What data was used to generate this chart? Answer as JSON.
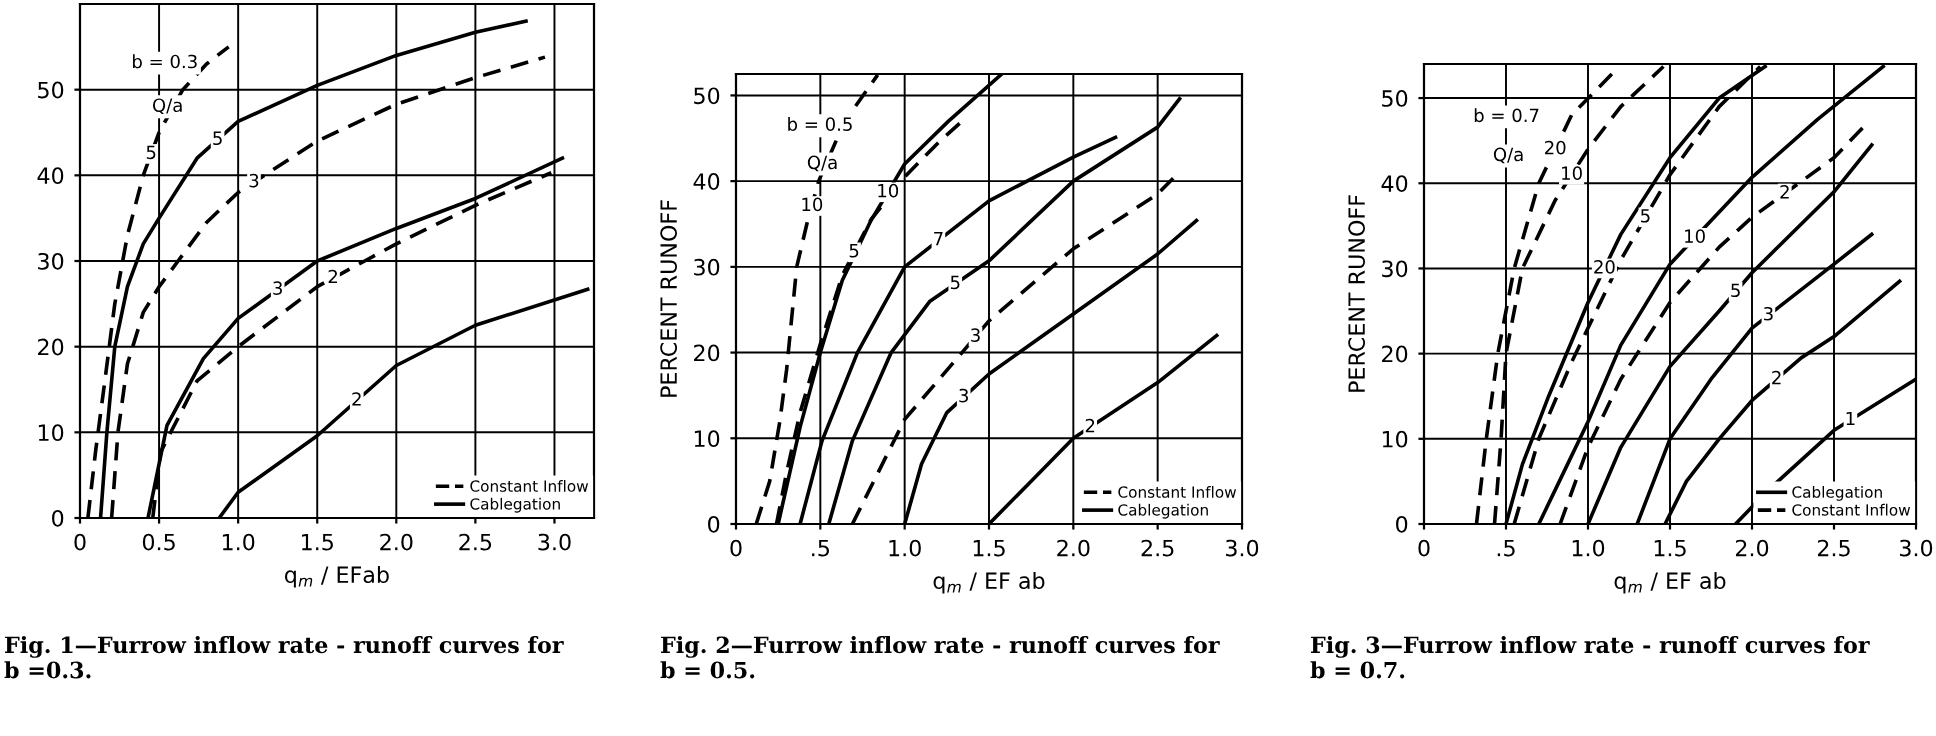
{
  "chart_data": [
    {
      "type": "line",
      "title": "Fig. 1—Furrow inflow rate - runoff curves for\nb =0.3.",
      "xlabel": "q$_{m}$ / EFab",
      "xlim": [
        0,
        3.25
      ],
      "ylim": [
        0,
        60
      ],
      "xticks": [
        0,
        {
          "value": 0.5,
          "label": "0.5"
        },
        {
          "value": 1,
          "label": "1.0"
        },
        {
          "value": 1.5,
          "label": "1.5"
        },
        {
          "value": 2,
          "label": "2.0"
        },
        {
          "value": 2.5,
          "label": "2.5"
        },
        {
          "value": 3,
          "label": "3.0"
        }
      ],
      "yticks": [
        0,
        10,
        20,
        30,
        40,
        50
      ],
      "grid": true,
      "legend": "bottom right",
      "annotations": [
        "b = 0.3",
        "Q/a",
        {
          "text": "5",
          "x": 0.45,
          "y": 42.5
        },
        {
          "text": "5",
          "x": 0.87,
          "y": 44.15
        },
        {
          "text": "3",
          "x": 1.1,
          "y": 39.2
        },
        {
          "text": "3",
          "x": 1.25,
          "y": 26.65
        },
        {
          "text": "2",
          "x": 1.6,
          "y": 28
        },
        {
          "text": "2",
          "x": 1.75,
          "y": 13.7
        }
      ],
      "series": [
        {
          "name": "Constant Inflow",
          "color": "#000000",
          "line_style": "dashed",
          "x": [
            0.05,
            0.1,
            0.15,
            0.22,
            0.3,
            0.4,
            0.5,
            0.65,
            0.8,
            0.94
          ],
          "values": [
            0,
            8,
            15,
            25,
            33,
            40,
            45,
            50,
            53,
            55
          ]
        },
        {
          "name": "Cablegation",
          "color": "#000000",
          "line_style": "solid",
          "x": [
            0.13,
            0.17,
            0.22,
            0.3,
            0.4,
            0.5,
            0.74,
            1.0,
            1.5,
            2.0,
            2.5,
            2.82
          ],
          "values": [
            0,
            10,
            20,
            27,
            32,
            35,
            42,
            46.3,
            50.5,
            54,
            56.7,
            58
          ]
        },
        {
          "color": "#000000",
          "line_style": "dashed",
          "x": [
            0.2,
            0.24,
            0.3,
            0.4,
            0.5,
            0.62,
            0.8,
            1.0,
            1.5,
            2.0,
            2.5,
            2.94
          ],
          "values": [
            0,
            10,
            18,
            24,
            27,
            30,
            34.5,
            38,
            44,
            48.3,
            51.4,
            53.8
          ]
        },
        {
          "color": "#000000",
          "line_style": "solid",
          "x": [
            0.43,
            0.55,
            0.78,
            1.0,
            1.5,
            2.0,
            2.5,
            3.05
          ],
          "values": [
            0,
            10.8,
            18.6,
            23.3,
            30,
            33.8,
            37.3,
            42
          ]
        },
        {
          "color": "#000000",
          "line_style": "dashed",
          "x": [
            0.46,
            0.51,
            0.74,
            1.0,
            1.5,
            2.0,
            2.5,
            2.98
          ],
          "values": [
            0,
            7.7,
            16,
            20,
            27,
            32,
            36.5,
            40.3
          ]
        },
        {
          "color": "#000000",
          "line_style": "solid",
          "x": [
            0.88,
            1.0,
            1.5,
            2.0,
            2.5,
            3.21
          ],
          "values": [
            0,
            3,
            9.6,
            17.8,
            22.5,
            26.7
          ]
        }
      ]
    },
    {
      "type": "line",
      "title": "Fig. 2—Furrow inflow rate - runoff curves for\nb = 0.5.",
      "xlabel": "q$_{m}$ / EF ab",
      "ylabel": "PERCENT RUNOFF",
      "xlim": [
        0,
        3.0
      ],
      "ylim": [
        0,
        52.5
      ],
      "xticks": [
        0,
        {
          "value": 0.5,
          "label": ".5"
        },
        {
          "value": 1,
          "label": "1.0"
        },
        {
          "value": 1.5,
          "label": "1.5"
        },
        {
          "value": 2,
          "label": "2.0"
        },
        {
          "value": 2.5,
          "label": "2.5"
        },
        {
          "value": 3,
          "label": "3.0"
        }
      ],
      "yticks": [
        0,
        10,
        20,
        30,
        40,
        50
      ],
      "grid": true,
      "legend": "bottom right",
      "annotations": [
        "b = 0.5",
        "Q/a",
        {
          "text": "10",
          "x": 0.45,
          "y": 37.1
        },
        {
          "text": "10",
          "x": 0.9,
          "y": 38.7
        },
        {
          "text": "5",
          "x": 0.7,
          "y": 31.7
        },
        {
          "text": "7",
          "x": 1.2,
          "y": 33.1
        },
        {
          "text": "5",
          "x": 1.3,
          "y": 28
        },
        {
          "text": "3",
          "x": 1.42,
          "y": 21.85
        },
        {
          "text": "3",
          "x": 1.35,
          "y": 14.8
        },
        {
          "text": "2",
          "x": 2.1,
          "y": 11.3
        }
      ],
      "series": [
        {
          "name": "Constant Inflow",
          "color": "#000000",
          "line_style": "dashed",
          "x": [
            0.12,
            0.2,
            0.26,
            0.3,
            0.36,
            0.42,
            0.49,
            0.6,
            0.7,
            0.84
          ],
          "values": [
            0,
            5,
            12,
            18,
            30,
            35,
            40,
            45,
            48.5,
            52.4
          ]
        },
        {
          "name": "Cablegation",
          "color": "#000000",
          "line_style": "solid",
          "x": [
            0.25,
            0.38,
            0.5,
            0.63,
            0.8,
            1.0,
            1.26,
            1.57
          ],
          "values": [
            0,
            11.3,
            20,
            28.4,
            35.4,
            42,
            47,
            52.4
          ]
        },
        {
          "color": "#000000",
          "line_style": "dashed",
          "x": [
            0.24,
            0.3,
            0.38,
            0.5,
            0.63,
            0.8,
            1.0,
            1.2,
            1.34
          ],
          "values": [
            0,
            6,
            13,
            21,
            29,
            35.5,
            40.5,
            44.5,
            47
          ]
        },
        {
          "color": "#000000",
          "line_style": "solid",
          "x": [
            0.38,
            0.51,
            0.72,
            1.0,
            1.5,
            2.0,
            2.25
          ],
          "values": [
            0,
            9.7,
            20,
            30,
            37.7,
            42.8,
            45.1
          ]
        },
        {
          "color": "#000000",
          "line_style": "solid",
          "x": [
            0.55,
            0.69,
            0.92,
            1.15,
            1.5,
            2.0,
            2.5,
            2.63
          ],
          "values": [
            0,
            9.7,
            20,
            26,
            30.7,
            40,
            46.3,
            49.6
          ]
        },
        {
          "color": "#000000",
          "line_style": "dashed",
          "x": [
            0.69,
            1.0,
            1.34,
            1.5,
            2.0,
            2.5,
            2.61
          ],
          "values": [
            0,
            12.2,
            20,
            23.7,
            32.1,
            38.5,
            40.7
          ]
        },
        {
          "color": "#000000",
          "line_style": "solid",
          "x": [
            1.0,
            1.1,
            1.25,
            1.5,
            2.0,
            2.5,
            2.73
          ],
          "values": [
            0,
            7,
            13,
            17.5,
            24.5,
            31.5,
            35.4
          ]
        },
        {
          "color": "#000000",
          "line_style": "solid",
          "x": [
            1.5,
            1.75,
            2.0,
            2.5,
            2.85
          ],
          "values": [
            0,
            5,
            10,
            16.5,
            22
          ]
        }
      ]
    },
    {
      "type": "line",
      "title": "Fig. 3—Furrow inflow rate - runoff curves for\nb = 0.7.",
      "xlabel": "q$_{m}$ / EF ab",
      "ylabel": "PERCENT RUNOFF",
      "xlim": [
        0,
        3.0
      ],
      "ylim": [
        0,
        54
      ],
      "xticks": [
        0,
        {
          "value": 0.5,
          "label": ".5"
        },
        {
          "value": 1,
          "label": "1.0"
        },
        {
          "value": 1.5,
          "label": "1.5"
        },
        {
          "value": 2,
          "label": "2.0"
        },
        {
          "value": 2.5,
          "label": "2.5"
        },
        {
          "value": 3,
          "label": "3.0"
        }
      ],
      "yticks": [
        0,
        10,
        20,
        30,
        40,
        50
      ],
      "grid": true,
      "legend": "bottom right",
      "annotations": [
        "b = 0.7",
        "Q/a",
        {
          "text": "20",
          "x": 0.8,
          "y": 44
        },
        {
          "text": "10",
          "x": 0.9,
          "y": 41
        },
        {
          "text": "20",
          "x": 1.1,
          "y": 30
        },
        {
          "text": "5",
          "x": 1.35,
          "y": 36
        },
        {
          "text": "10",
          "x": 1.65,
          "y": 33.6
        },
        {
          "text": "2",
          "x": 2.2,
          "y": 38.8
        },
        {
          "text": "5",
          "x": 1.9,
          "y": 27.25
        },
        {
          "text": "3",
          "x": 2.1,
          "y": 24.5
        },
        {
          "text": "2",
          "x": 2.15,
          "y": 17
        },
        {
          "text": "1",
          "x": 2.6,
          "y": 12.2
        }
      ],
      "series": [
        {
          "color": "#000000",
          "line_style": "dashed",
          "x": [
            0.32,
            0.38,
            0.45,
            0.55,
            0.7,
            0.9,
            1.19
          ],
          "values": [
            0,
            10,
            20,
            30,
            40,
            48,
            53.7
          ]
        },
        {
          "color": "#000000",
          "line_style": "dashed",
          "x": [
            0.43,
            0.47,
            0.5,
            0.6,
            0.8,
            1.0,
            1.2,
            1.46
          ],
          "values": [
            0,
            10,
            20,
            30,
            38,
            44,
            49,
            53.7
          ]
        },
        {
          "name": "Cablegation",
          "color": "#000000",
          "line_style": "solid",
          "x": [
            0.5,
            0.6,
            0.76,
            1.0,
            1.2,
            1.5,
            1.8,
            2.08
          ],
          "values": [
            0,
            7,
            15,
            26,
            34,
            43,
            50,
            53.7
          ]
        },
        {
          "name": "Constant Inflow",
          "color": "#000000",
          "line_style": "dashed",
          "x": [
            0.55,
            0.7,
            0.9,
            1.0,
            1.2,
            1.5,
            1.8,
            2.05
          ],
          "values": [
            0,
            10,
            19,
            23,
            31,
            41,
            49,
            53.7
          ]
        },
        {
          "color": "#000000",
          "line_style": "solid",
          "x": [
            0.7,
            0.85,
            1.0,
            1.2,
            1.5,
            2.0,
            2.4,
            2.8
          ],
          "values": [
            0,
            6,
            12,
            21,
            30.5,
            40.7,
            47.5,
            53.7
          ]
        },
        {
          "color": "#000000",
          "line_style": "dashed",
          "x": [
            0.83,
            1.0,
            1.2,
            1.5,
            1.8,
            2.0,
            2.5,
            2.7
          ],
          "values": [
            0,
            9,
            17,
            26,
            32.5,
            36,
            43,
            47
          ]
        },
        {
          "color": "#000000",
          "line_style": "solid",
          "x": [
            1.0,
            1.2,
            1.5,
            1.8,
            2.0,
            2.5,
            2.73
          ],
          "values": [
            0,
            9,
            18.5,
            25,
            29.5,
            39,
            44.5
          ]
        },
        {
          "color": "#000000",
          "line_style": "solid",
          "x": [
            1.3,
            1.5,
            1.75,
            2.0,
            2.5,
            2.73
          ],
          "values": [
            0,
            10,
            17,
            23,
            30.5,
            34
          ]
        },
        {
          "color": "#000000",
          "line_style": "solid",
          "x": [
            1.47,
            1.6,
            1.8,
            2.0,
            2.3,
            2.5,
            2.9
          ],
          "values": [
            0,
            5,
            10,
            14.5,
            19.5,
            22,
            28.5
          ]
        },
        {
          "color": "#000000",
          "line_style": "solid",
          "x": [
            1.9,
            2.1,
            2.5,
            3.0
          ],
          "values": [
            0,
            4,
            11,
            17
          ]
        }
      ]
    }
  ]
}
